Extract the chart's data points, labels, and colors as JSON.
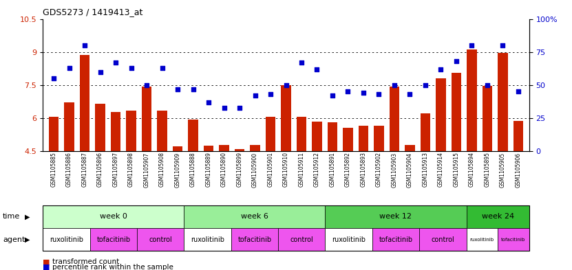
{
  "title": "GDS5273 / 1419413_at",
  "samples": [
    "GSM1105885",
    "GSM1105886",
    "GSM1105887",
    "GSM1105896",
    "GSM1105897",
    "GSM1105898",
    "GSM1105907",
    "GSM1105908",
    "GSM1105909",
    "GSM1105888",
    "GSM1105889",
    "GSM1105890",
    "GSM1105899",
    "GSM1105900",
    "GSM1105901",
    "GSM1105910",
    "GSM1105911",
    "GSM1105912",
    "GSM1105891",
    "GSM1105892",
    "GSM1105893",
    "GSM1105902",
    "GSM1105903",
    "GSM1105904",
    "GSM1105913",
    "GSM1105914",
    "GSM1105915",
    "GSM1105894",
    "GSM1105895",
    "GSM1105905",
    "GSM1105906"
  ],
  "bar_values": [
    6.05,
    6.7,
    8.87,
    6.65,
    6.28,
    6.35,
    7.42,
    6.35,
    4.72,
    5.95,
    4.75,
    4.78,
    4.6,
    4.78,
    6.05,
    7.48,
    6.05,
    5.85,
    5.82,
    5.55,
    5.65,
    5.65,
    7.42,
    4.78,
    6.22,
    7.8,
    8.05,
    9.1,
    7.47,
    8.95,
    5.88
  ],
  "percentile_values": [
    55,
    63,
    80,
    60,
    67,
    63,
    50,
    63,
    47,
    47,
    37,
    33,
    33,
    42,
    43,
    50,
    67,
    62,
    42,
    45,
    44,
    43,
    50,
    43,
    50,
    62,
    68,
    80,
    50,
    80,
    45
  ],
  "bar_color": "#cc2200",
  "dot_color": "#0000cc",
  "ylim_left": [
    4.5,
    10.5
  ],
  "ylim_right": [
    0,
    100
  ],
  "yticks_left": [
    4.5,
    6.0,
    7.5,
    9.0,
    10.5
  ],
  "yticks_right": [
    0,
    25,
    50,
    75,
    100
  ],
  "ytick_labels_left": [
    "4.5",
    "6",
    "7.5",
    "9",
    "10.5"
  ],
  "ytick_labels_right": [
    "0",
    "25",
    "50",
    "75",
    "100%"
  ],
  "hlines": [
    6.0,
    7.5,
    9.0
  ],
  "time_groups": [
    {
      "label": "week 0",
      "start": 0,
      "end": 9,
      "color": "#ccffcc"
    },
    {
      "label": "week 6",
      "start": 9,
      "end": 18,
      "color": "#99ee99"
    },
    {
      "label": "week 12",
      "start": 18,
      "end": 27,
      "color": "#66dd66"
    },
    {
      "label": "week 24",
      "start": 27,
      "end": 31,
      "color": "#33cc33"
    }
  ],
  "agent_groups": [
    {
      "label": "ruxolitinib",
      "start": 0,
      "end": 3,
      "color": "#ffffff"
    },
    {
      "label": "tofacitinib",
      "start": 3,
      "end": 6,
      "color": "#ee66ee"
    },
    {
      "label": "control",
      "start": 6,
      "end": 9,
      "color": "#ee66ee"
    },
    {
      "label": "ruxolitinib",
      "start": 9,
      "end": 12,
      "color": "#ffffff"
    },
    {
      "label": "tofacitinib",
      "start": 12,
      "end": 15,
      "color": "#ee66ee"
    },
    {
      "label": "control",
      "start": 15,
      "end": 18,
      "color": "#ee66ee"
    },
    {
      "label": "ruxolitinib",
      "start": 18,
      "end": 21,
      "color": "#ffffff"
    },
    {
      "label": "tofacitinib",
      "start": 21,
      "end": 24,
      "color": "#ee66ee"
    },
    {
      "label": "control",
      "start": 24,
      "end": 27,
      "color": "#ee66ee"
    },
    {
      "label": "ruxolitinib",
      "start": 27,
      "end": 29,
      "color": "#ffffff"
    },
    {
      "label": "tofacitinib",
      "start": 29,
      "end": 31,
      "color": "#ee66ee"
    }
  ],
  "legend_items": [
    {
      "label": "transformed count",
      "color": "#cc2200"
    },
    {
      "label": "percentile rank within the sample",
      "color": "#0000cc"
    }
  ],
  "chart_bg": "#ffffff",
  "fig_bg": "#ffffff"
}
